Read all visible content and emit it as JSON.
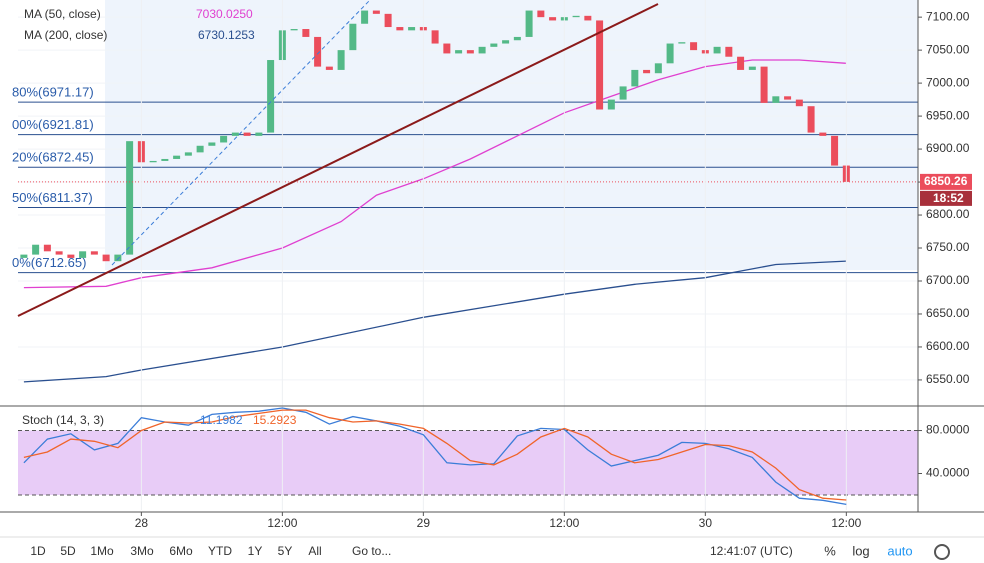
{
  "chart_data": [
    {
      "type": "candlestick",
      "x": [
        -10,
        -9,
        -8,
        -7,
        -6,
        -5,
        -4,
        -3,
        -2,
        -1,
        0,
        1,
        2,
        3,
        4,
        5,
        6,
        7,
        8,
        9,
        10,
        11,
        12,
        13,
        14,
        15,
        16,
        17,
        18,
        19,
        20,
        21,
        22,
        23,
        24,
        25,
        26,
        27,
        28,
        29,
        30,
        31,
        32,
        33,
        34,
        35,
        36,
        37,
        38,
        39,
        40,
        41,
        42,
        43,
        44,
        45,
        46,
        47,
        48,
        49,
        50,
        51,
        52,
        53,
        54,
        55,
        56,
        57,
        58,
        59,
        60
      ],
      "open": [
        6735,
        6740,
        6755,
        6745,
        6740,
        6735,
        6745,
        6740,
        6730,
        6740,
        6912,
        6880,
        6882,
        6885,
        6890,
        6895,
        6905,
        6910,
        6920,
        6925,
        6920,
        6925,
        7035,
        7080,
        7082,
        7070,
        7025,
        7020,
        7050,
        7090,
        7110,
        7105,
        7085,
        7080,
        7085,
        7080,
        7060,
        7045,
        7050,
        7045,
        7055,
        7060,
        7065,
        7070,
        7110,
        7100,
        7095,
        7100,
        7102,
        7095,
        6960,
        6975,
        6995,
        7020,
        7015,
        7030,
        7060,
        7062,
        7050,
        7045,
        7055,
        7040,
        7020,
        7025,
        6970,
        6980,
        6975,
        6965,
        6925,
        6920,
        6875
      ],
      "close": [
        6740,
        6755,
        6745,
        6740,
        6735,
        6745,
        6740,
        6730,
        6740,
        6912,
        6880,
        6882,
        6885,
        6890,
        6895,
        6905,
        6910,
        6920,
        6925,
        6920,
        6925,
        7035,
        7080,
        7082,
        7070,
        7025,
        7020,
        7050,
        7090,
        7110,
        7105,
        7085,
        7080,
        7085,
        7080,
        7060,
        7045,
        7050,
        7045,
        7055,
        7060,
        7065,
        7070,
        7110,
        7100,
        7095,
        7100,
        7102,
        7095,
        6960,
        6975,
        6995,
        7020,
        7015,
        7030,
        7060,
        7062,
        7050,
        7045,
        7055,
        7040,
        7020,
        7025,
        6970,
        6980,
        6975,
        6965,
        6925,
        6920,
        6875,
        6850.26
      ],
      "up_color": "#53b987",
      "down_color": "#eb4d5c",
      "xlim": [
        -10.5,
        66.1
      ],
      "ylim": [
        6512,
        7126
      ],
      "yticks": [
        {
          "value": 6550,
          "label": "6550.00"
        },
        {
          "value": 6600,
          "label": "6600.00"
        },
        {
          "value": 6650,
          "label": "6650.00"
        },
        {
          "value": 6700,
          "label": "6700.00"
        },
        {
          "value": 6750,
          "label": "6750.00"
        },
        {
          "value": 6800,
          "label": "6800.00"
        },
        {
          "value": 6850,
          "label": "6850.00"
        },
        {
          "value": 6900,
          "label": "6900.00"
        },
        {
          "value": 6950,
          "label": "6950.00"
        },
        {
          "value": 7000,
          "label": "7000.00"
        },
        {
          "value": 7050,
          "label": "7050.00"
        },
        {
          "value": 7100,
          "label": "7100.00"
        }
      ],
      "series": [
        {
          "name": "MA (50, close)",
          "color": "#e040d0",
          "x": [
            -10,
            -3,
            0,
            6,
            12,
            17,
            20,
            24,
            28,
            32,
            36,
            40,
            44,
            48,
            52,
            56,
            60
          ],
          "values": [
            6690,
            6692,
            6705,
            6720,
            6750,
            6790,
            6830,
            6855,
            6885,
            6920,
            6955,
            6980,
            7005,
            7025,
            7035,
            7035,
            7030.025
          ],
          "value_label": "7030.0250"
        },
        {
          "name": "MA (200, close)",
          "color": "#2a4f8f",
          "x": [
            -10,
            -3,
            0,
            12,
            24,
            36,
            42,
            48,
            54,
            60
          ],
          "values": [
            6547,
            6555,
            6565,
            6600,
            6645,
            6680,
            6695,
            6705,
            6725,
            6730.1253
          ],
          "value_label": "6730.1253"
        }
      ],
      "levels": [
        {
          "value": 6971.17,
          "label": "80%(6971.17)"
        },
        {
          "value": 6921.81,
          "label": "00%(6921.81)"
        },
        {
          "value": 6872.45,
          "label": "20%(6872.45)"
        },
        {
          "value": 6811.37,
          "label": "50%(6811.37)"
        },
        {
          "value": 6712.65,
          "label": "0%(6712.65)"
        }
      ],
      "last_price": 6850.26,
      "countdown": "18:52"
    },
    {
      "type": "line",
      "title": "Stoch (14, 3, 3)",
      "x": [
        -10,
        -8,
        -6,
        -4,
        -2,
        0,
        2,
        4,
        6,
        8,
        10,
        12,
        14,
        16,
        18,
        20,
        22,
        24,
        26,
        28,
        30,
        32,
        34,
        36,
        38,
        40,
        42,
        44,
        46,
        48,
        50,
        52,
        54,
        56,
        58,
        60
      ],
      "series": [
        {
          "color": "#3b7dd8",
          "values": [
            50,
            72,
            77,
            62,
            68,
            92,
            88,
            85,
            95,
            97,
            98,
            101,
            97,
            86,
            93,
            89,
            84,
            76,
            50,
            48,
            49,
            75,
            82,
            81,
            62,
            47,
            52,
            57,
            69,
            68,
            63,
            55,
            32,
            17,
            15,
            11.1982
          ],
          "value_label": "11.1982"
        },
        {
          "color": "#f0642a",
          "values": [
            55,
            60,
            72,
            70,
            64,
            80,
            88,
            87,
            88,
            93,
            96,
            99,
            99,
            92,
            88,
            89,
            86,
            82,
            68,
            52,
            48,
            58,
            74,
            82,
            74,
            58,
            50,
            53,
            60,
            67,
            66,
            60,
            45,
            25,
            17,
            15.2923
          ],
          "value_label": "15.2923"
        }
      ],
      "band": [
        20,
        80
      ],
      "xlim": [
        -10.5,
        66.1
      ],
      "ylim": [
        6,
        101
      ],
      "yticks": [
        {
          "value": 80,
          "label": "80.0000"
        },
        {
          "value": 40,
          "label": "40.0000"
        }
      ],
      "xticks": [
        {
          "value": 0,
          "label": "28"
        },
        {
          "value": 12,
          "label": "12:00"
        },
        {
          "value": 24,
          "label": "29"
        },
        {
          "value": 36,
          "label": "12:00"
        },
        {
          "value": 48,
          "label": "30"
        },
        {
          "value": 60,
          "label": "12:00"
        }
      ]
    }
  ],
  "toolbar": {
    "ranges": [
      "1D",
      "5D",
      "1Mo",
      "3Mo",
      "6Mo",
      "YTD",
      "1Y",
      "5Y",
      "All"
    ],
    "goto": "Go to...",
    "clock": "12:41:07 (UTC)",
    "options": [
      "%",
      "log",
      "auto"
    ]
  }
}
